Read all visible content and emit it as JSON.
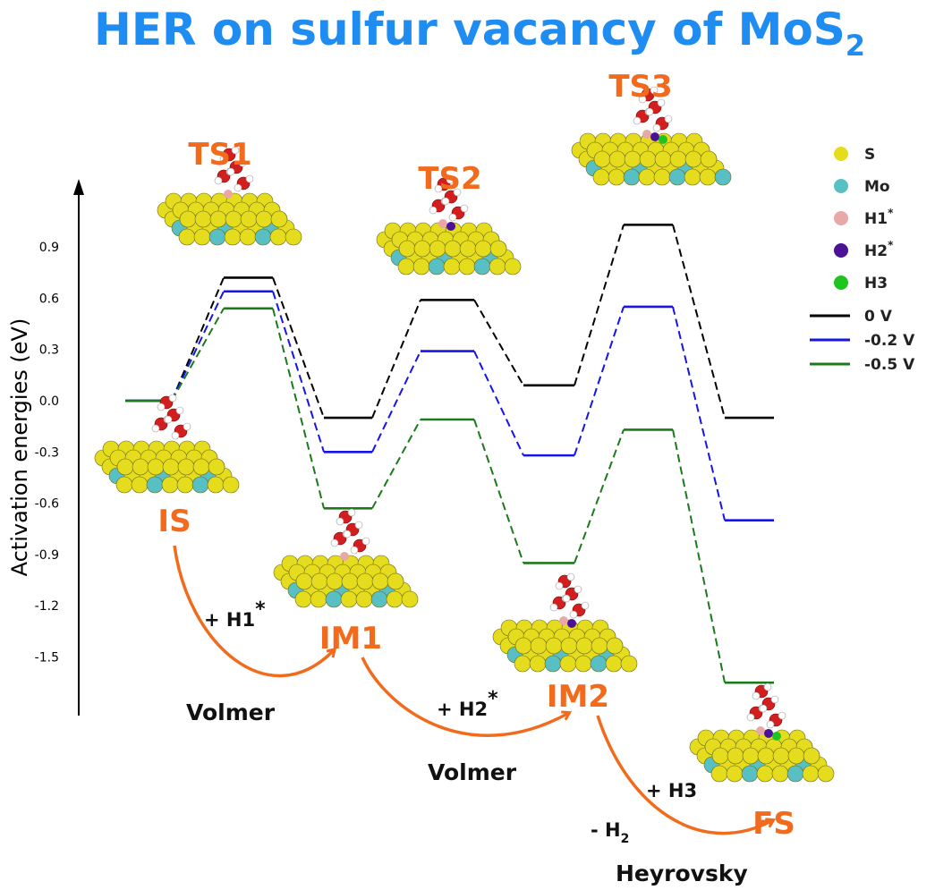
{
  "title_main": "HER on sulfur vacancy of MoS",
  "title_sub": "2",
  "colors": {
    "title": "#1E8CF0",
    "state_label": "#F26B1D",
    "arrow": "#F26B1D",
    "S": "#E6DC1E",
    "Mo": "#58C0C4",
    "H1": "#E8A8A8",
    "H2": "#4B1296",
    "H3": "#1FC421",
    "O": "#D21E1E",
    "H": "#FFFFFF"
  },
  "chart_data": {
    "type": "line",
    "ylabel": "Activation energies (eV)",
    "ylim": [
      -1.75,
      1.15
    ],
    "yticks": [
      "0.9",
      "0.6",
      "0.3",
      "0.0",
      "-0.3",
      "-0.6",
      "-0.9",
      "-1.2",
      "-1.5"
    ],
    "ytick_values": [
      0.9,
      0.6,
      0.3,
      0.0,
      -0.3,
      -0.6,
      -0.9,
      -1.2,
      -1.5
    ],
    "states": [
      "IS",
      "TS1",
      "IM1",
      "TS2",
      "IM2",
      "TS3",
      "FS"
    ],
    "series": [
      {
        "name": "0 V",
        "color": "#000000",
        "values": [
          0.0,
          0.72,
          -0.1,
          0.59,
          0.09,
          1.03,
          -0.1
        ]
      },
      {
        "name": "-0.2 V",
        "color": "#1515E6",
        "values": [
          0.0,
          0.64,
          -0.3,
          0.29,
          -0.32,
          0.55,
          -0.7
        ]
      },
      {
        "name": "-0.5 V",
        "color": "#1B7A1B",
        "values": [
          0.0,
          0.54,
          -0.63,
          -0.11,
          -0.95,
          -0.17,
          -1.65
        ]
      }
    ],
    "legend": {
      "placement": "right",
      "atoms": [
        {
          "label": "S",
          "sup": "",
          "color": "#E6DC1E"
        },
        {
          "label": "Mo",
          "sup": "",
          "color": "#58C0C4"
        },
        {
          "label": "H1",
          "sup": "*",
          "color": "#E8A8A8"
        },
        {
          "label": "H2",
          "sup": "*",
          "color": "#4B1296"
        },
        {
          "label": "H3",
          "sup": "",
          "color": "#1FC421"
        }
      ]
    }
  },
  "states_labels": {
    "IS": "IS",
    "TS1": "TS1",
    "IM1": "IM1",
    "TS2": "TS2",
    "IM2": "IM2",
    "TS3": "TS3",
    "FS": "FS"
  },
  "steps": {
    "volmer1": "Volmer",
    "volmer2": "Volmer",
    "heyrovsky": "Heyrovsky",
    "h1_base": "+ H1",
    "h1_sup": "*",
    "h2_base": "+ H2",
    "h2_sup": "*",
    "h3": "+ H3",
    "minus_h2_base": "- H",
    "minus_h2_sub": "2"
  }
}
